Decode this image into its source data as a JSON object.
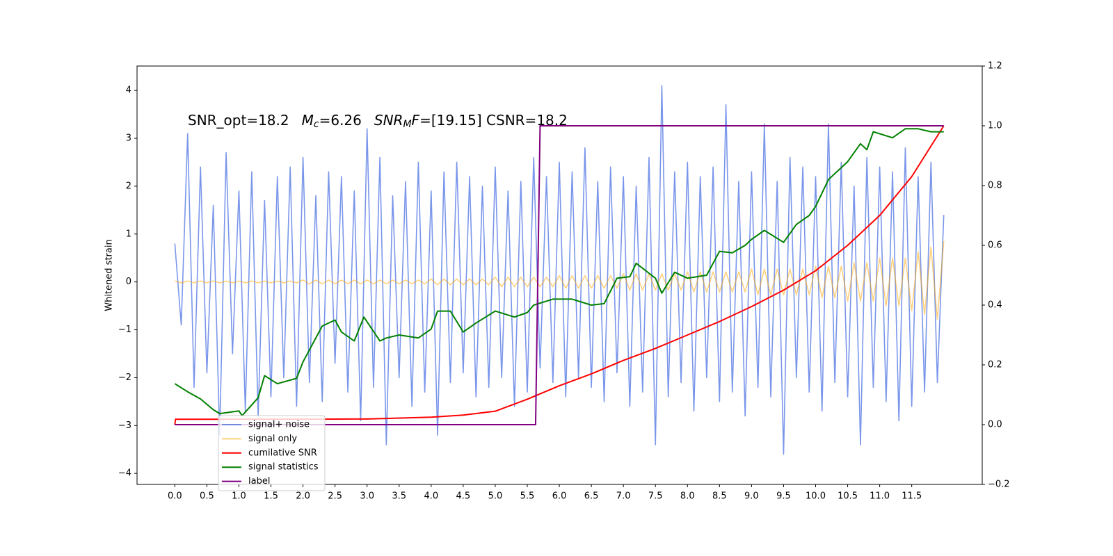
{
  "chart_data": {
    "type": "line",
    "annotation": [
      "SNR_opt=18.2",
      "M",
      "c",
      "=6.26",
      "SNR",
      "M",
      "F",
      "=[19.15] CSNR=18.2"
    ],
    "ylabel": "Whitened strain",
    "xlim": [
      -0.59,
      12.6
    ],
    "ylim": [
      -4.23,
      4.51
    ],
    "y2lim": [
      -0.2,
      1.2
    ],
    "xticks": [
      {
        "value": 0,
        "label": "0.0"
      },
      0.5,
      {
        "value": 1,
        "label": "1.0"
      },
      1.5,
      {
        "value": 2,
        "label": "2.0"
      },
      2.5,
      {
        "value": 3,
        "label": "3.0"
      },
      3.5,
      {
        "value": 4,
        "label": "4.0"
      },
      4.5,
      {
        "value": 5,
        "label": "5.0"
      },
      5.5,
      {
        "value": 6,
        "label": "6.0"
      },
      6.5,
      {
        "value": 7,
        "label": "7.0"
      },
      7.5,
      {
        "value": 8,
        "label": "8.0"
      },
      8.5,
      {
        "value": 9,
        "label": "9.0"
      },
      9.5,
      {
        "value": 10,
        "label": "10.0"
      },
      10.5,
      {
        "value": 11,
        "label": "11.0"
      },
      11.5
    ],
    "yticks": [
      {
        "value": -4,
        "label": "−4"
      },
      {
        "value": -3,
        "label": "−3"
      },
      {
        "value": -2,
        "label": "−2"
      },
      {
        "value": -1,
        "label": "−1"
      },
      0,
      1,
      2,
      3,
      4
    ],
    "y2ticks": [
      {
        "value": -0.2,
        "label": "−0.2"
      },
      {
        "value": 0,
        "label": "0.0"
      },
      0.2,
      0.4,
      0.6,
      0.8,
      {
        "value": 1,
        "label": "1.0"
      },
      1.2
    ],
    "x": [
      0.0,
      0.1,
      0.2,
      0.3,
      0.4,
      0.5,
      0.6,
      0.7,
      0.8,
      0.9,
      1.0,
      1.1,
      1.2,
      1.3,
      1.4,
      1.5,
      1.6,
      1.7,
      1.8,
      1.9,
      2.0,
      2.1,
      2.2,
      2.3,
      2.4,
      2.5,
      2.6,
      2.7,
      2.8,
      2.9,
      3.0,
      3.1,
      3.2,
      3.3,
      3.4,
      3.5,
      3.6,
      3.7,
      3.8,
      3.9,
      4.0,
      4.1,
      4.2,
      4.3,
      4.4,
      4.5,
      4.6,
      4.7,
      4.8,
      4.9,
      5.0,
      5.1,
      5.2,
      5.3,
      5.4,
      5.5,
      5.6,
      5.7,
      5.8,
      5.9,
      6.0,
      6.1,
      6.2,
      6.3,
      6.4,
      6.5,
      6.6,
      6.7,
      6.8,
      6.9,
      7.0,
      7.1,
      7.2,
      7.3,
      7.4,
      7.5,
      7.6,
      7.7,
      7.8,
      7.9,
      8.0,
      8.1,
      8.2,
      8.3,
      8.4,
      8.5,
      8.6,
      8.7,
      8.8,
      8.9,
      9.0,
      9.1,
      9.2,
      9.3,
      9.4,
      9.5,
      9.6,
      9.7,
      9.8,
      9.9,
      10.0,
      10.1,
      10.2,
      10.3,
      10.4,
      10.5,
      10.6,
      10.7,
      10.8,
      10.9,
      11.0,
      11.1,
      11.2,
      11.3,
      11.4,
      11.5,
      11.6,
      11.7,
      11.8,
      11.9,
      12.0
    ],
    "series": [
      {
        "name": "signal+ noise",
        "color": "#4169e1",
        "alpha": 0.7,
        "width": 1.6,
        "values": [
          0.8,
          -0.9,
          3.1,
          -2.2,
          2.4,
          -1.9,
          1.6,
          -3.2,
          2.7,
          -1.5,
          1.9,
          -2.7,
          2.3,
          -2.8,
          1.7,
          -2.4,
          2.2,
          -2.0,
          2.4,
          -2.6,
          2.6,
          -2.1,
          1.8,
          -2.5,
          2.3,
          -1.7,
          2.2,
          -2.3,
          1.9,
          -2.9,
          3.2,
          -2.2,
          2.6,
          -3.4,
          1.8,
          -2.0,
          2.1,
          -2.6,
          2.5,
          -2.3,
          1.9,
          -3.2,
          2.3,
          -2.1,
          2.5,
          -1.9,
          2.2,
          -2.4,
          2.0,
          -2.2,
          2.4,
          -2.0,
          1.9,
          -2.6,
          2.1,
          -2.3,
          2.6,
          -1.8,
          2.2,
          -2.1,
          2.5,
          -2.4,
          2.3,
          -2.0,
          2.8,
          -2.2,
          2.1,
          -2.5,
          2.4,
          -1.9,
          2.2,
          -2.6,
          2.0,
          -2.3,
          2.6,
          -3.4,
          4.1,
          -2.4,
          2.3,
          -2.1,
          2.5,
          -2.7,
          2.2,
          -2.0,
          2.4,
          -2.5,
          3.7,
          -2.3,
          2.1,
          -2.8,
          2.3,
          -2.2,
          3.3,
          -2.4,
          2.1,
          -3.6,
          2.6,
          -2.0,
          2.4,
          -2.3,
          2.2,
          -2.7,
          3.3,
          -2.1,
          2.5,
          -2.4,
          2.0,
          -3.4,
          2.6,
          -2.2,
          2.4,
          -2.5,
          2.3,
          -2.9,
          2.8,
          -2.6,
          2.2,
          -2.3,
          2.5,
          -2.1,
          1.4
        ]
      },
      {
        "name": "signal only",
        "color": "#ffa500",
        "alpha": 0.5,
        "width": 1.6,
        "values": [
          0.02,
          -0.02,
          0.02,
          -0.02,
          0.02,
          -0.02,
          0.02,
          -0.02,
          0.02,
          -0.02,
          0.02,
          -0.02,
          0.02,
          -0.02,
          0.02,
          -0.02,
          0.02,
          -0.02,
          0.02,
          -0.02,
          0.04,
          -0.04,
          0.04,
          -0.04,
          0.04,
          -0.04,
          0.04,
          -0.04,
          0.04,
          -0.04,
          0.04,
          -0.04,
          0.04,
          -0.04,
          0.04,
          -0.04,
          0.04,
          -0.04,
          0.04,
          -0.04,
          0.06,
          -0.06,
          0.06,
          -0.06,
          0.06,
          -0.06,
          0.06,
          -0.06,
          0.06,
          -0.06,
          0.1,
          -0.1,
          0.1,
          -0.1,
          0.1,
          -0.1,
          0.1,
          -0.1,
          0.1,
          -0.1,
          0.13,
          -0.13,
          0.13,
          -0.13,
          0.13,
          -0.13,
          0.13,
          -0.13,
          0.13,
          -0.13,
          0.17,
          -0.17,
          0.17,
          -0.17,
          0.17,
          -0.17,
          0.17,
          -0.17,
          0.17,
          -0.17,
          0.21,
          -0.21,
          0.21,
          -0.21,
          0.21,
          -0.21,
          0.21,
          -0.21,
          0.21,
          -0.21,
          0.27,
          -0.27,
          0.27,
          -0.27,
          0.27,
          -0.27,
          0.27,
          -0.27,
          0.27,
          -0.27,
          0.33,
          -0.33,
          0.33,
          -0.33,
          0.33,
          -0.4,
          0.4,
          -0.4,
          0.4,
          -0.4,
          0.5,
          -0.5,
          0.5,
          -0.5,
          0.5,
          -0.6,
          0.63,
          -0.68,
          0.73,
          -0.78,
          0.85
        ]
      },
      {
        "name": "cumilative SNR",
        "color": "#ff0000",
        "axis": "y2",
        "width": 2,
        "x": [
          0,
          0.01,
          0.5,
          1,
          2,
          3,
          4,
          4.5,
          5,
          5.5,
          6,
          6.5,
          7,
          7.5,
          8,
          8.5,
          9,
          9.5,
          10,
          10.5,
          11,
          11.5,
          12
        ],
        "values": [
          0,
          0.018,
          0.018,
          0.018,
          0.018,
          0.019,
          0.025,
          0.032,
          0.045,
          0.085,
          0.13,
          0.17,
          0.215,
          0.255,
          0.3,
          0.345,
          0.395,
          0.45,
          0.515,
          0.6,
          0.7,
          0.83,
          1.0
        ]
      },
      {
        "name": "signal statistics",
        "color": "#008000",
        "axis": "y2",
        "width": 2,
        "x": [
          0,
          0.2,
          0.4,
          0.6,
          0.7,
          1.0,
          1.05,
          1.3,
          1.4,
          1.6,
          1.9,
          2.0,
          2.3,
          2.5,
          2.6,
          2.8,
          2.95,
          3.2,
          3.3,
          3.5,
          3.8,
          4.0,
          4.1,
          4.3,
          4.5,
          4.7,
          5.0,
          5.3,
          5.5,
          5.6,
          5.9,
          6.2,
          6.5,
          6.7,
          6.9,
          7.1,
          7.2,
          7.5,
          7.6,
          7.8,
          8.0,
          8.3,
          8.5,
          8.7,
          8.9,
          9.0,
          9.2,
          9.5,
          9.7,
          9.9,
          10.0,
          10.2,
          10.5,
          10.7,
          10.8,
          10.9,
          11.2,
          11.4,
          11.6,
          11.8,
          12.0
        ],
        "values": [
          0.137,
          0.11,
          0.086,
          0.05,
          0.037,
          0.046,
          0.03,
          0.09,
          0.164,
          0.137,
          0.155,
          0.21,
          0.33,
          0.35,
          0.31,
          0.28,
          0.36,
          0.28,
          0.29,
          0.3,
          0.29,
          0.32,
          0.38,
          0.38,
          0.31,
          0.34,
          0.38,
          0.36,
          0.375,
          0.4,
          0.42,
          0.42,
          0.4,
          0.405,
          0.49,
          0.495,
          0.54,
          0.49,
          0.44,
          0.51,
          0.49,
          0.5,
          0.58,
          0.575,
          0.6,
          0.62,
          0.65,
          0.61,
          0.67,
          0.7,
          0.73,
          0.82,
          0.88,
          0.94,
          0.92,
          0.98,
          0.96,
          0.99,
          0.99,
          0.98,
          0.98
        ]
      },
      {
        "name": "label",
        "color": "#800080",
        "axis": "y2",
        "width": 2,
        "x": [
          0,
          5.63,
          5.7,
          12.0
        ],
        "values": [
          0,
          0,
          1,
          1
        ]
      }
    ]
  }
}
